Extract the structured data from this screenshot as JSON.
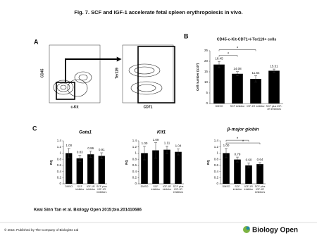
{
  "title": "Fig. 7. SCF and IGF-1 accelerate fetal spleen erythropoiesis in vivo.",
  "panel_a": {
    "label": "A",
    "plot1": {
      "y_label": "CD45",
      "x_label": "c-Kit"
    },
    "plot2": {
      "y_label": "Ter119",
      "x_label": "CD71"
    }
  },
  "chart_data": [
    {
      "type": "bar",
      "panel": "B",
      "title": "CD45-c-Kit-CD71+/-Ter119+ cells",
      "y_label": "Cell number (x10³)",
      "categories": [
        "DMSO",
        "SCF inhibitor",
        "IGF-1R inhibitor",
        "SCF plus IGF-1R inhibitors"
      ],
      "values": [
        18.45,
        14.08,
        11.64,
        15.51
      ],
      "errors": [
        1.5,
        1.0,
        1.5,
        0.8
      ],
      "color": "#000000",
      "ylim": [
        0,
        25
      ],
      "yticks": [
        0,
        5,
        10,
        15,
        20,
        25
      ],
      "annotations": [
        "*",
        "*"
      ]
    },
    {
      "type": "bar",
      "panel": "C",
      "title": "Gata1",
      "y_label": "RQ",
      "categories": [
        "DMSO",
        "SCF inhibitor",
        "IGF-1R inhibitor",
        "SCF plus IGF-1R inhibitors"
      ],
      "values": [
        1,
        0.83,
        0.96,
        0.91
      ],
      "value_labels": [
        "1.00",
        "0.83",
        "0.96",
        "0.91"
      ],
      "errors": [
        0.15,
        0.1,
        0.1,
        0.1
      ],
      "color": "#000000",
      "ylim": [
        0,
        1.4
      ],
      "yticks": [
        0,
        0.2,
        0.4,
        0.6,
        0.8,
        1,
        1.2,
        1.4
      ]
    },
    {
      "type": "bar",
      "title": "Klf1",
      "y_label": "RQ",
      "categories": [
        "DMSO",
        "SCF inhibitor",
        "IGF-1R inhibitor",
        "SCF plus IGF-1R inhibitors"
      ],
      "values": [
        1,
        1.09,
        1.11,
        1.04
      ],
      "value_labels": [
        "1.00",
        "1.09",
        "1.11",
        "1.04"
      ],
      "errors": [
        0.22,
        0.25,
        0.12,
        0.1
      ],
      "color": "#000000",
      "ylim": [
        0,
        1.4
      ],
      "yticks": [
        0,
        0.2,
        0.4,
        0.6,
        0.8,
        1,
        1.2,
        1.4
      ]
    },
    {
      "type": "bar",
      "title": "β-major globin",
      "y_label": "RQ",
      "categories": [
        "DMSO",
        "SCF inhibitor",
        "IGF-1R inhibitor",
        "SCF plus IGF-1R inhibitors"
      ],
      "values": [
        1,
        0.79,
        0.6,
        0.64
      ],
      "value_labels": [
        "1.00",
        "0.79",
        "0.60",
        "0.64"
      ],
      "errors": [
        0.15,
        0.08,
        0.08,
        0.05
      ],
      "color": "#000000",
      "ylim": [
        0,
        1.4
      ],
      "yticks": [
        0,
        0.2,
        0.4,
        0.6,
        0.8,
        1,
        1.2,
        1.4
      ],
      "annotations": [
        "*",
        "*"
      ]
    }
  ],
  "footer": {
    "citation": "Keai Sinn Tan et al. Biology Open 2015;bio.201410686",
    "copyright": "© 2015. Published by The Company of Biologists Ltd",
    "logo_text": "Biology Open"
  }
}
